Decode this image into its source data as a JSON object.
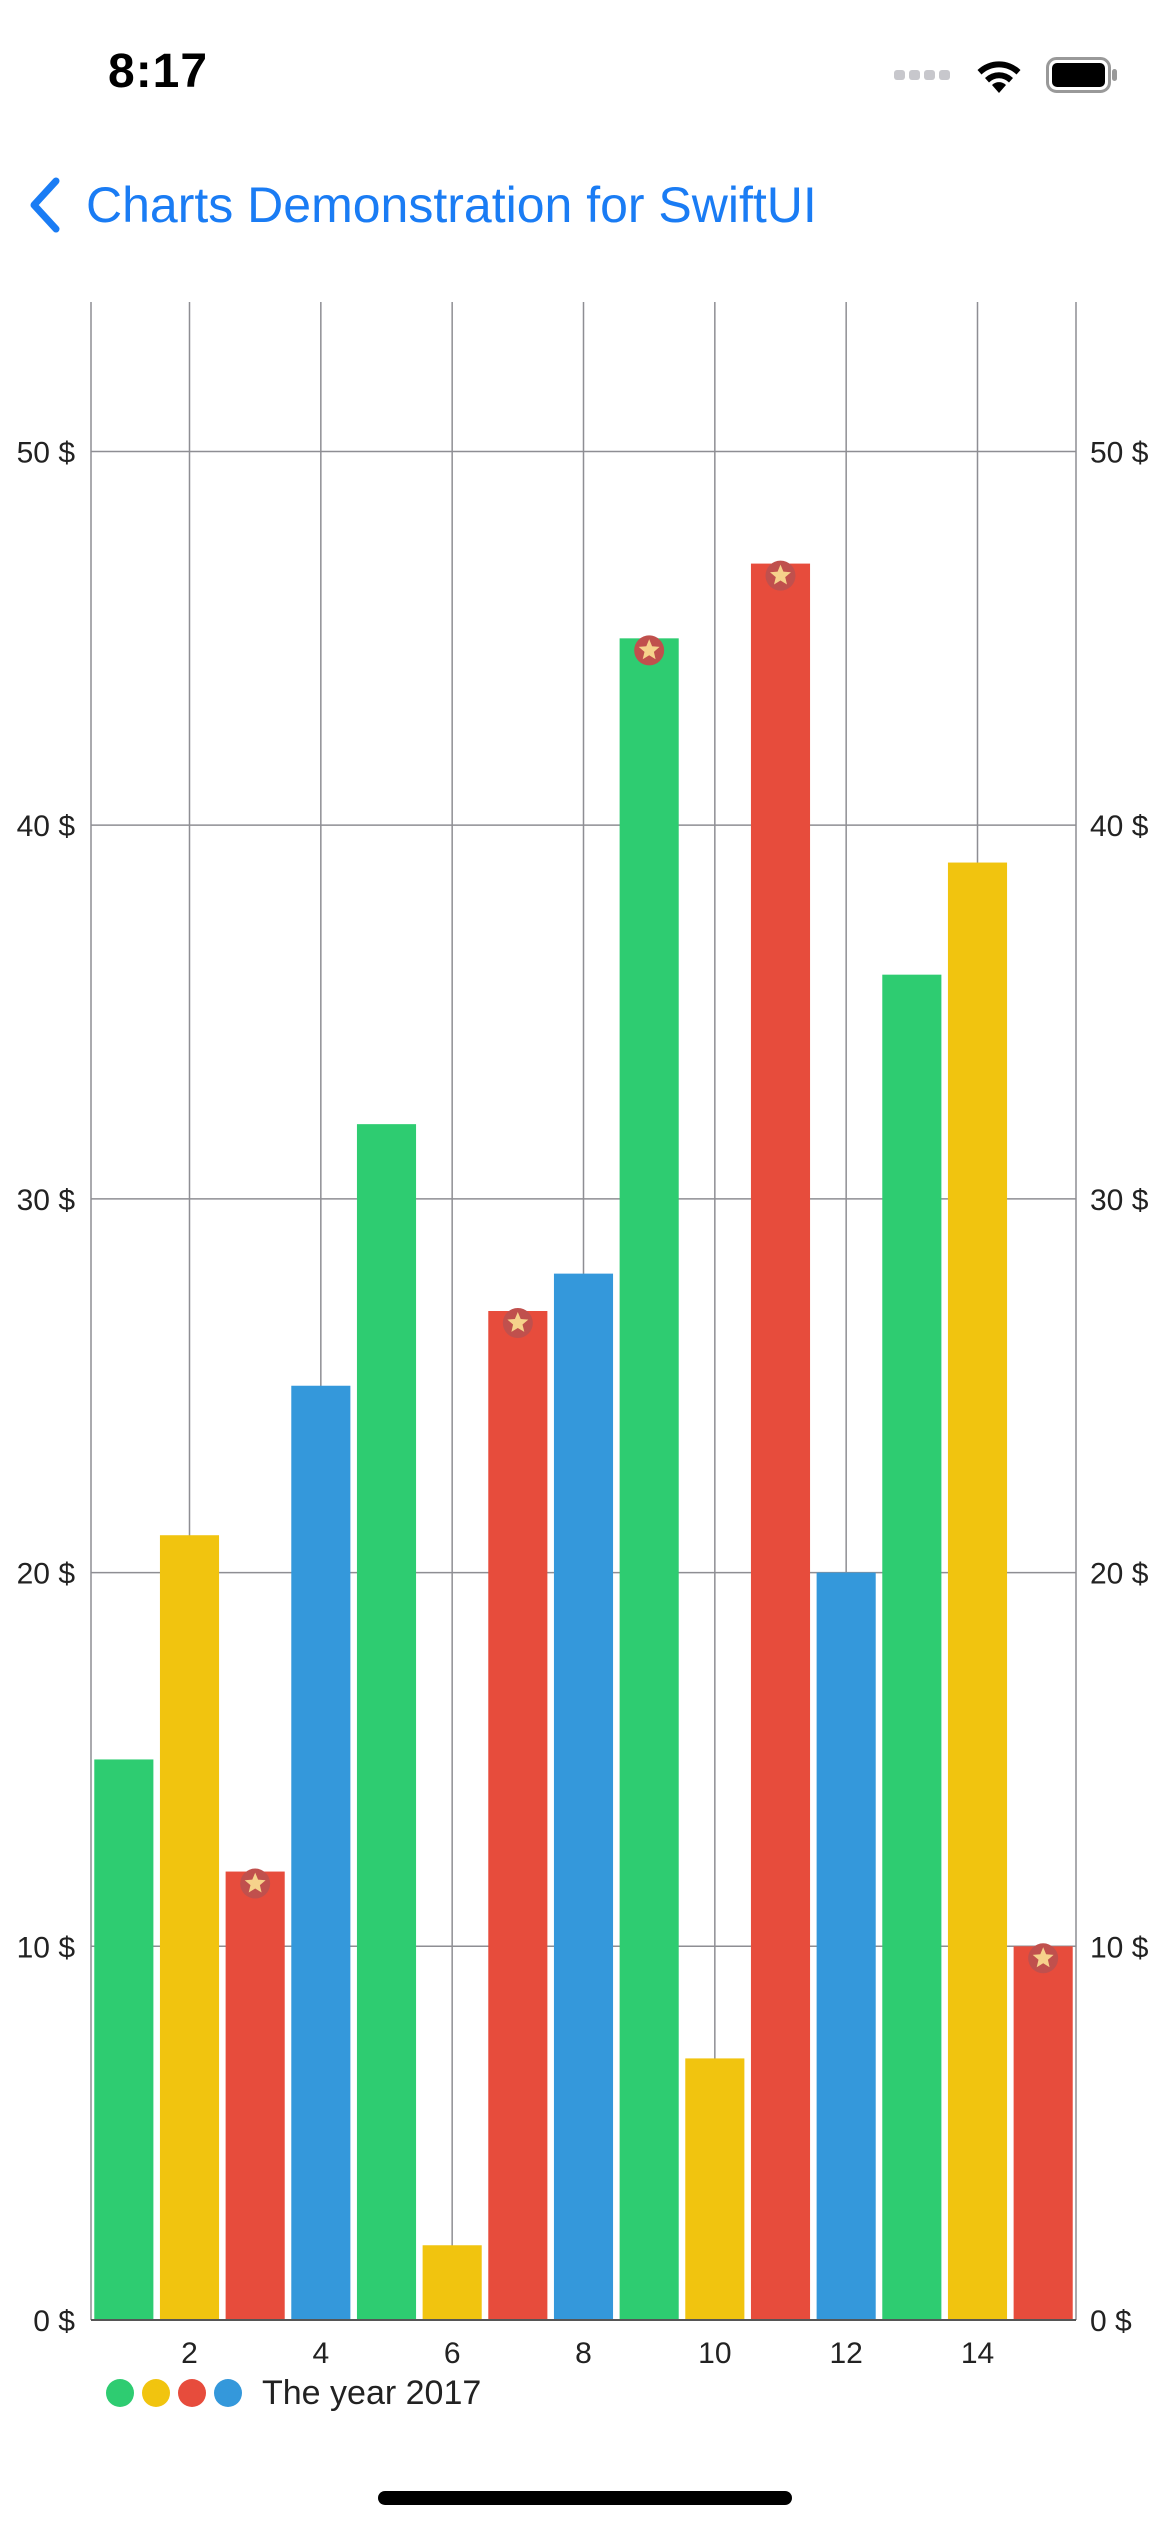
{
  "status_bar": {
    "time": "8:17"
  },
  "navigation": {
    "back_label": "Charts Demonstration for SwiftUI",
    "accent_color": "#1a7cf4"
  },
  "chart_data": {
    "type": "bar",
    "x": [
      1,
      2,
      3,
      4,
      5,
      6,
      7,
      8,
      9,
      10,
      11,
      12,
      13,
      14,
      15
    ],
    "values": [
      15,
      21,
      12,
      25,
      32,
      2,
      27,
      28,
      45,
      7,
      47,
      20,
      36,
      39,
      10
    ],
    "bar_colors": [
      "#2ecc71",
      "#f1c40f",
      "#e74c3c",
      "#3498db",
      "#2ecc71",
      "#f1c40f",
      "#e74c3c",
      "#3498db",
      "#2ecc71",
      "#f1c40f",
      "#e74c3c",
      "#3498db",
      "#2ecc71",
      "#f1c40f",
      "#e74c3c"
    ],
    "star_markers_on": [
      3,
      7,
      9,
      11,
      15
    ],
    "x_ticks": [
      "2",
      "4",
      "6",
      "8",
      "10",
      "12",
      "14"
    ],
    "x_tick_values": [
      2,
      4,
      6,
      8,
      10,
      12,
      14
    ],
    "y_ticks": [
      "0 $",
      "10 $",
      "20 $",
      "30 $",
      "40 $",
      "50 $"
    ],
    "y_tick_values": [
      0,
      10,
      20,
      30,
      40,
      50
    ],
    "ylim": [
      0,
      54
    ],
    "xlim": [
      0.5,
      15.5
    ],
    "grid": true,
    "legend": {
      "label": "The year 2017",
      "colors": [
        "#2ecc71",
        "#f1c40f",
        "#e74c3c",
        "#3498db"
      ],
      "placement": "bottom-left"
    }
  }
}
